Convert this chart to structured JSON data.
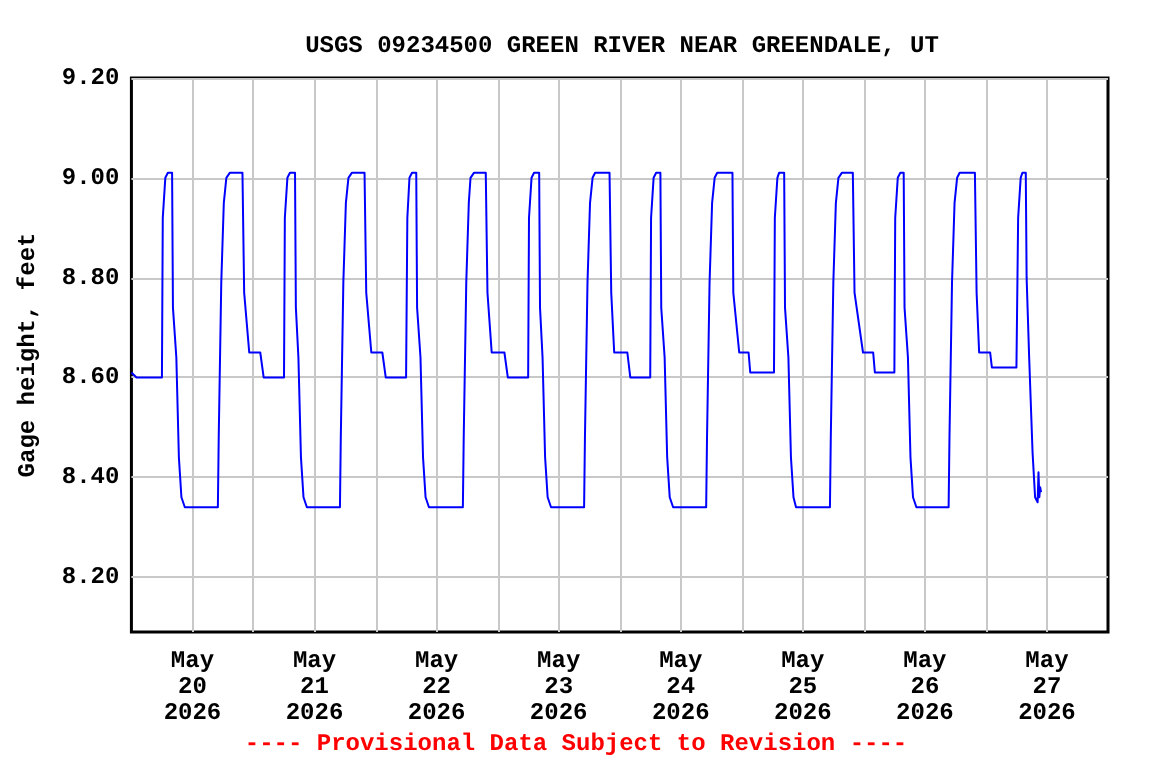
{
  "chart_data": {
    "type": "line",
    "title": "USGS 09234500 GREEN RIVER NEAR GREENDALE, UT",
    "ylabel": "Gage height, feet",
    "annotations": [
      "---- Provisional Data Subject to Revision ----"
    ],
    "x": [
      "2026-05-20T00:00",
      "2026-05-20T01:00",
      "2026-05-20T06:00",
      "2026-05-20T06:10",
      "2026-05-20T06:40",
      "2026-05-20T07:10",
      "2026-05-20T08:00",
      "2026-05-20T08:10",
      "2026-05-20T08:50",
      "2026-05-20T09:20",
      "2026-05-20T09:50",
      "2026-05-20T10:30",
      "2026-05-20T17:00",
      "2026-05-20T17:10",
      "2026-05-20T17:40",
      "2026-05-20T18:10",
      "2026-05-20T18:40",
      "2026-05-20T19:20",
      "2026-05-20T21:50",
      "2026-05-20T22:10",
      "2026-05-20T23:10",
      "2026-05-21T01:20",
      "2026-05-21T02:00",
      "2026-05-21T06:00",
      "2026-05-21T06:10",
      "2026-05-21T06:40",
      "2026-05-21T07:10",
      "2026-05-21T08:10",
      "2026-05-21T08:20",
      "2026-05-21T08:50",
      "2026-05-21T09:20",
      "2026-05-21T09:50",
      "2026-05-21T10:30",
      "2026-05-21T17:00",
      "2026-05-21T17:10",
      "2026-05-21T17:40",
      "2026-05-21T18:10",
      "2026-05-21T18:40",
      "2026-05-21T19:20",
      "2026-05-21T21:50",
      "2026-05-21T22:10",
      "2026-05-21T23:10",
      "2026-05-22T01:20",
      "2026-05-22T02:00",
      "2026-05-22T06:00",
      "2026-05-22T06:15",
      "2026-05-22T06:40",
      "2026-05-22T07:10",
      "2026-05-22T08:00",
      "2026-05-22T08:10",
      "2026-05-22T08:50",
      "2026-05-22T09:20",
      "2026-05-22T09:50",
      "2026-05-22T10:30",
      "2026-05-22T17:10",
      "2026-05-22T17:20",
      "2026-05-22T17:50",
      "2026-05-22T18:20",
      "2026-05-22T18:40",
      "2026-05-22T19:20",
      "2026-05-22T21:40",
      "2026-05-22T22:00",
      "2026-05-22T22:50",
      "2026-05-23T01:20",
      "2026-05-23T02:00",
      "2026-05-23T06:00",
      "2026-05-23T06:10",
      "2026-05-23T06:40",
      "2026-05-23T07:10",
      "2026-05-23T08:10",
      "2026-05-23T08:20",
      "2026-05-23T08:50",
      "2026-05-23T09:20",
      "2026-05-23T09:50",
      "2026-05-23T10:30",
      "2026-05-23T17:00",
      "2026-05-23T17:10",
      "2026-05-23T17:40",
      "2026-05-23T18:10",
      "2026-05-23T18:40",
      "2026-05-23T19:10",
      "2026-05-23T22:00",
      "2026-05-23T22:20",
      "2026-05-23T22:55",
      "2026-05-24T01:30",
      "2026-05-24T02:05",
      "2026-05-24T06:00",
      "2026-05-24T06:10",
      "2026-05-24T06:40",
      "2026-05-24T07:10",
      "2026-05-24T08:00",
      "2026-05-24T08:10",
      "2026-05-24T08:50",
      "2026-05-24T09:20",
      "2026-05-24T09:50",
      "2026-05-24T10:30",
      "2026-05-24T17:00",
      "2026-05-24T17:10",
      "2026-05-24T17:40",
      "2026-05-24T18:10",
      "2026-05-24T18:40",
      "2026-05-24T19:10",
      "2026-05-24T22:10",
      "2026-05-24T22:20",
      "2026-05-24T23:30",
      "2026-05-25T01:20",
      "2026-05-25T01:40",
      "2026-05-25T06:20",
      "2026-05-25T06:30",
      "2026-05-25T07:00",
      "2026-05-25T07:20",
      "2026-05-25T08:20",
      "2026-05-25T08:30",
      "2026-05-25T09:10",
      "2026-05-25T09:40",
      "2026-05-25T10:10",
      "2026-05-25T10:40",
      "2026-05-25T17:20",
      "2026-05-25T17:30",
      "2026-05-25T18:00",
      "2026-05-25T18:30",
      "2026-05-25T19:00",
      "2026-05-25T19:40",
      "2026-05-25T21:50",
      "2026-05-25T22:10",
      "2026-05-25T23:50",
      "2026-05-26T01:50",
      "2026-05-26T02:10",
      "2026-05-26T06:00",
      "2026-05-26T06:10",
      "2026-05-26T06:40",
      "2026-05-26T07:10",
      "2026-05-26T07:50",
      "2026-05-26T08:00",
      "2026-05-26T08:40",
      "2026-05-26T09:10",
      "2026-05-26T09:40",
      "2026-05-26T10:20",
      "2026-05-26T16:40",
      "2026-05-26T16:50",
      "2026-05-26T17:20",
      "2026-05-26T17:50",
      "2026-05-26T18:20",
      "2026-05-26T18:50",
      "2026-05-26T21:50",
      "2026-05-26T22:10",
      "2026-05-26T22:40",
      "2026-05-27T00:50",
      "2026-05-27T01:10",
      "2026-05-27T06:00",
      "2026-05-27T06:20",
      "2026-05-27T06:50",
      "2026-05-27T07:10",
      "2026-05-27T07:50",
      "2026-05-27T08:00",
      "2026-05-27T08:30",
      "2026-05-27T09:10",
      "2026-05-27T09:40",
      "2026-05-27T10:10",
      "2026-05-27T10:20",
      "2026-05-27T10:30",
      "2026-05-27T10:40",
      "2026-05-27T10:50"
    ],
    "series": [
      {
        "color": "#0000ff",
        "values": [
          8.61,
          8.6,
          8.6,
          8.92,
          9.0,
          9.01,
          9.01,
          8.74,
          8.64,
          8.44,
          8.36,
          8.34,
          8.34,
          8.48,
          8.79,
          8.95,
          9.0,
          9.01,
          9.01,
          8.77,
          8.65,
          8.65,
          8.6,
          8.6,
          8.92,
          9.0,
          9.01,
          9.01,
          8.74,
          8.64,
          8.44,
          8.36,
          8.34,
          8.34,
          8.48,
          8.79,
          8.95,
          9.0,
          9.01,
          9.01,
          8.77,
          8.65,
          8.65,
          8.6,
          8.6,
          8.92,
          9.0,
          9.01,
          9.01,
          8.74,
          8.64,
          8.44,
          8.36,
          8.34,
          8.34,
          8.48,
          8.79,
          8.95,
          9.0,
          9.01,
          9.01,
          8.77,
          8.65,
          8.65,
          8.6,
          8.6,
          8.92,
          9.0,
          9.01,
          9.01,
          8.74,
          8.64,
          8.44,
          8.36,
          8.34,
          8.34,
          8.48,
          8.79,
          8.95,
          9.0,
          9.01,
          9.01,
          8.77,
          8.65,
          8.65,
          8.6,
          8.6,
          8.92,
          9.0,
          9.01,
          9.01,
          8.74,
          8.64,
          8.44,
          8.36,
          8.34,
          8.34,
          8.48,
          8.79,
          8.95,
          9.0,
          9.01,
          9.01,
          8.77,
          8.65,
          8.65,
          8.61,
          8.61,
          8.92,
          9.0,
          9.01,
          9.01,
          8.74,
          8.64,
          8.44,
          8.36,
          8.34,
          8.34,
          8.48,
          8.79,
          8.95,
          9.0,
          9.01,
          9.01,
          8.77,
          8.65,
          8.65,
          8.61,
          8.61,
          8.92,
          9.0,
          9.01,
          9.01,
          8.74,
          8.64,
          8.44,
          8.36,
          8.34,
          8.34,
          8.48,
          8.79,
          8.95,
          9.0,
          9.01,
          9.01,
          8.77,
          8.65,
          8.65,
          8.62,
          8.62,
          8.92,
          9.0,
          9.01,
          9.01,
          8.8,
          8.64,
          8.45,
          8.36,
          8.35,
          8.41,
          8.36,
          8.38,
          8.37
        ]
      }
    ],
    "xlim": [
      "2026-05-20T00:00",
      "2026-05-28T00:00"
    ],
    "xticks": [
      {
        "value": "2026-05-20T12:00",
        "label": "May\n20\n2026"
      },
      {
        "value": "2026-05-21T00:00",
        "label": null
      },
      {
        "value": "2026-05-21T12:00",
        "label": "May\n21\n2026"
      },
      {
        "value": "2026-05-22T00:00",
        "label": null
      },
      {
        "value": "2026-05-22T12:00",
        "label": "May\n22\n2026"
      },
      {
        "value": "2026-05-23T00:00",
        "label": null
      },
      {
        "value": "2026-05-23T12:00",
        "label": "May\n23\n2026"
      },
      {
        "value": "2026-05-24T00:00",
        "label": null
      },
      {
        "value": "2026-05-24T12:00",
        "label": "May\n24\n2026"
      },
      {
        "value": "2026-05-25T00:00",
        "label": null
      },
      {
        "value": "2026-05-25T12:00",
        "label": "May\n25\n2026"
      },
      {
        "value": "2026-05-26T00:00",
        "label": null
      },
      {
        "value": "2026-05-26T12:00",
        "label": "May\n26\n2026"
      },
      {
        "value": "2026-05-27T00:00",
        "label": null
      },
      {
        "value": "2026-05-27T12:00",
        "label": "May\n27\n2026"
      }
    ],
    "ylim": [
      8.09,
      9.2
    ],
    "yticks": [
      {
        "value": 8.2,
        "label": "8.20"
      },
      {
        "value": 8.4,
        "label": "8.40"
      },
      {
        "value": 8.6,
        "label": "8.60"
      },
      {
        "value": 8.8,
        "label": "8.80"
      },
      {
        "value": 9.0,
        "label": "9.00"
      },
      {
        "value": 9.2,
        "label": "9.20"
      }
    ],
    "grid": true,
    "marker": "none",
    "line_style": "solid"
  }
}
